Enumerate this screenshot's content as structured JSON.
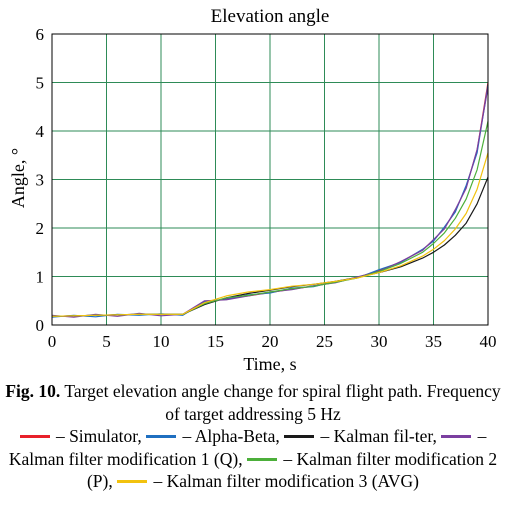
{
  "chart_data": {
    "type": "line",
    "title": "Elevation angle",
    "xlabel": "Time, s",
    "ylabel": "Angle, °",
    "xlim": [
      0,
      40
    ],
    "ylim": [
      0,
      6
    ],
    "xticks": [
      "0",
      "5",
      "10",
      "15",
      "20",
      "25",
      "30",
      "35",
      "40"
    ],
    "yticks": [
      "0",
      "1",
      "2",
      "3",
      "4",
      "5",
      "6"
    ],
    "grid": true,
    "grid_color": "#2e8b57",
    "x": [
      0,
      2,
      4,
      6,
      8,
      10,
      12,
      14,
      16,
      18,
      20,
      22,
      24,
      26,
      28,
      30,
      32,
      34,
      35,
      36,
      37,
      38,
      39,
      40
    ],
    "series": [
      {
        "name": "Simulator",
        "color": "#e8202a",
        "values": [
          0.18,
          0.19,
          0.2,
          0.21,
          0.22,
          0.22,
          0.22,
          0.45,
          0.55,
          0.6,
          0.67,
          0.74,
          0.8,
          0.88,
          0.98,
          1.12,
          1.3,
          1.55,
          1.75,
          2.0,
          2.35,
          2.85,
          3.6,
          5.0
        ]
      },
      {
        "name": "Alpha-Beta",
        "color": "#1f6fc0",
        "values": [
          0.16,
          0.2,
          0.17,
          0.22,
          0.2,
          0.23,
          0.2,
          0.48,
          0.53,
          0.62,
          0.66,
          0.76,
          0.79,
          0.9,
          0.97,
          1.14,
          1.29,
          1.56,
          1.73,
          2.02,
          2.33,
          2.88,
          3.55,
          4.95
        ]
      },
      {
        "name": "Kalman filter",
        "color": "#1a1a1a",
        "values": [
          0.18,
          0.19,
          0.2,
          0.21,
          0.22,
          0.22,
          0.22,
          0.42,
          0.56,
          0.65,
          0.72,
          0.79,
          0.84,
          0.9,
          0.98,
          1.08,
          1.2,
          1.38,
          1.5,
          1.65,
          1.85,
          2.1,
          2.5,
          3.05
        ]
      },
      {
        "name": "Kalman filter modification 1 (Q)",
        "color": "#7b3fa0",
        "values": [
          0.2,
          0.16,
          0.22,
          0.18,
          0.24,
          0.19,
          0.22,
          0.5,
          0.52,
          0.6,
          0.68,
          0.73,
          0.81,
          0.87,
          0.99,
          1.1,
          1.31,
          1.54,
          1.76,
          1.98,
          2.38,
          2.82,
          3.62,
          4.9
        ]
      },
      {
        "name": "Kalman filter modification 2 (P)",
        "color": "#4caf3a",
        "values": [
          0.18,
          0.19,
          0.2,
          0.21,
          0.22,
          0.22,
          0.22,
          0.44,
          0.56,
          0.61,
          0.68,
          0.75,
          0.8,
          0.88,
          0.97,
          1.1,
          1.27,
          1.5,
          1.68,
          1.9,
          2.2,
          2.6,
          3.2,
          4.2
        ]
      },
      {
        "name": "Kalman filter modification 3 (AVG)",
        "color": "#f2c20f",
        "values": [
          0.18,
          0.19,
          0.2,
          0.21,
          0.22,
          0.22,
          0.22,
          0.46,
          0.6,
          0.68,
          0.73,
          0.8,
          0.84,
          0.9,
          0.97,
          1.08,
          1.22,
          1.42,
          1.56,
          1.74,
          1.98,
          2.3,
          2.8,
          3.55
        ]
      }
    ]
  },
  "caption": {
    "label": "Fig. 10.",
    "text": " Target elevation angle change for spiral flight path. Frequency of target addressing 5 Hz",
    "legend": [
      {
        "text": " – Simulator, ",
        "color": "#e8202a"
      },
      {
        "text": " – Alpha-Beta, ",
        "color": "#1f6fc0"
      },
      {
        "text": " – Kalman fil-ter, ",
        "color": "#1a1a1a"
      },
      {
        "text": " – Kalman filter modification  1 (Q), ",
        "color": "#7b3fa0"
      },
      {
        "text": " – Kalman filter modification 2 (P), ",
        "color": "#4caf3a"
      },
      {
        "text": " – Kalman filter modification 3  (AVG)",
        "color": "#f2c20f"
      }
    ]
  }
}
